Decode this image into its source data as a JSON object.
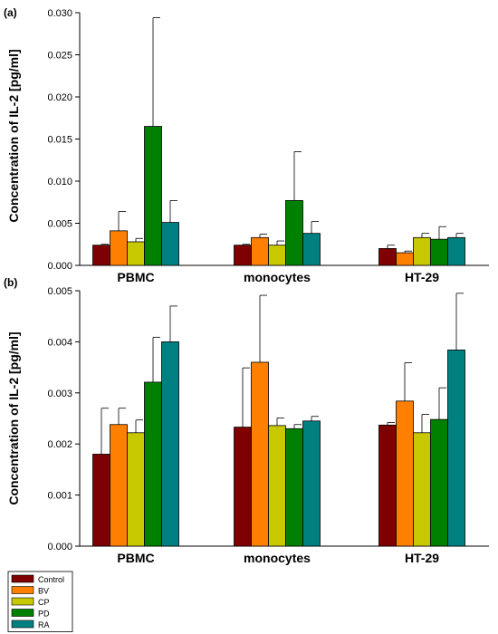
{
  "legend": {
    "placement": "bottom-left",
    "items": [
      {
        "name": "Control",
        "color": "#7f0000"
      },
      {
        "name": "BV",
        "color": "#ff8000"
      },
      {
        "name": "CP",
        "color": "#c8c800"
      },
      {
        "name": "PD",
        "color": "#008000"
      },
      {
        "name": "RA",
        "color": "#008080"
      }
    ]
  },
  "chart_data": [
    {
      "type": "bar",
      "panel_label": "(a)",
      "ylabel": "Concentration of IL-2 [pg/ml]",
      "ylim": [
        0,
        0.03
      ],
      "yticks": [
        "0.000",
        "0.005",
        "0.010",
        "0.015",
        "0.020",
        "0.025",
        "0.030"
      ],
      "categories": [
        "PBMC",
        "monocytes",
        "HT-29"
      ],
      "grid": false,
      "error_bars": true,
      "series": [
        {
          "name": "Control",
          "color": "#7f0000",
          "values": [
            0.0024,
            0.0024,
            0.002
          ],
          "errors": [
            0.0001,
            0.0001,
            0.0004
          ]
        },
        {
          "name": "BV",
          "color": "#ff8000",
          "values": [
            0.0041,
            0.0033,
            0.0015
          ],
          "errors": [
            0.0023,
            0.0004,
            0.0002
          ]
        },
        {
          "name": "CP",
          "color": "#c8c800",
          "values": [
            0.0028,
            0.0024,
            0.0033
          ],
          "errors": [
            0.0004,
            0.0005,
            0.0005
          ]
        },
        {
          "name": "PD",
          "color": "#008000",
          "values": [
            0.0165,
            0.0077,
            0.0031
          ],
          "errors": [
            0.0129,
            0.0058,
            0.0015
          ]
        },
        {
          "name": "RA",
          "color": "#008080",
          "values": [
            0.0051,
            0.0038,
            0.0033
          ],
          "errors": [
            0.0026,
            0.0014,
            0.0005
          ]
        }
      ]
    },
    {
      "type": "bar",
      "panel_label": "(b)",
      "ylabel": "Concentration of IL-2 [pg/ml]",
      "ylim": [
        0,
        0.005
      ],
      "yticks": [
        "0.000",
        "0.001",
        "0.002",
        "0.003",
        "0.004",
        "0.005"
      ],
      "categories": [
        "PBMC",
        "monocytes",
        "HT-29"
      ],
      "grid": false,
      "error_bars": true,
      "series": [
        {
          "name": "Control",
          "color": "#7f0000",
          "values": [
            0.0018,
            0.00233,
            0.00237
          ],
          "errors": [
            0.0009,
            0.00116,
            5e-05
          ]
        },
        {
          "name": "BV",
          "color": "#ff8000",
          "values": [
            0.00238,
            0.0036,
            0.00284
          ],
          "errors": [
            0.00032,
            0.00131,
            0.00075
          ]
        },
        {
          "name": "CP",
          "color": "#c8c800",
          "values": [
            0.00222,
            0.00236,
            0.00222
          ],
          "errors": [
            0.00025,
            0.00015,
            0.00036
          ]
        },
        {
          "name": "PD",
          "color": "#008000",
          "values": [
            0.00321,
            0.0023,
            0.00248
          ],
          "errors": [
            0.00088,
            8e-05,
            0.00062
          ]
        },
        {
          "name": "RA",
          "color": "#008080",
          "values": [
            0.004,
            0.00245,
            0.00384
          ],
          "errors": [
            0.0007,
            9e-05,
            0.00111
          ]
        }
      ]
    }
  ]
}
